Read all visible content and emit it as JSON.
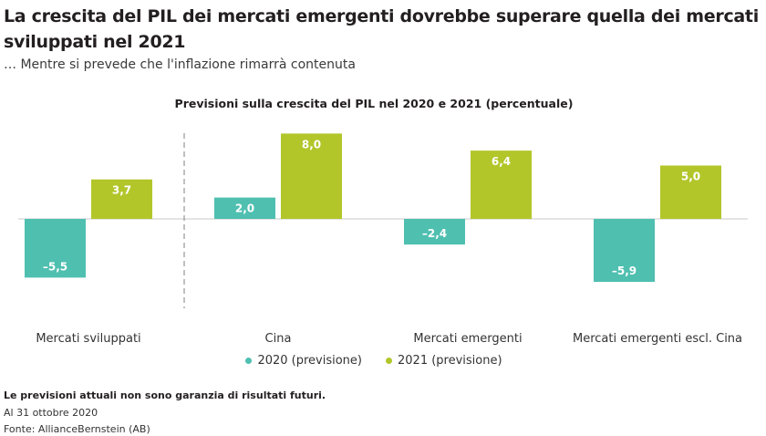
{
  "title": "La crescita del PIL dei mercati emergenti dovrebbe superare quella dei mercati sviluppati nel 2021",
  "subtitle": "… Mentre si prevede che l'inflazione rimarrà contenuta",
  "footnote": "Le previsioni attuali non sono garanzia di risultati futuri.",
  "date_note": "Al 31 ottobre 2020",
  "source": "Fonte: AllianceBernstein (AB)",
  "colors": {
    "s2020": "#4fbfb0",
    "s2021": "#b2c62a",
    "axis": "#c8c8c8",
    "divider": "#808080"
  },
  "chart_data": {
    "type": "bar",
    "title": "Previsioni sulla crescita del PIL nel 2020 e 2021 (percentuale)",
    "categories": [
      "Mercati sviluppati",
      "Cina",
      "Mercati emergenti",
      "Mercati emergenti escl. Cina"
    ],
    "series": [
      {
        "name": "2020 (previsione)",
        "values": [
          -5.5,
          2.0,
          -2.4,
          -5.9
        ],
        "labels": [
          "–5,5",
          "2,0",
          "–2,4",
          "–5,9"
        ]
      },
      {
        "name": "2021 (previsione)",
        "values": [
          3.7,
          8.0,
          6.4,
          5.0
        ],
        "labels": [
          "3,7",
          "8,0",
          "6,4",
          "5,0"
        ]
      }
    ],
    "ylim": [
      -8,
      8
    ],
    "grid": false,
    "legend": "bottom-center"
  }
}
